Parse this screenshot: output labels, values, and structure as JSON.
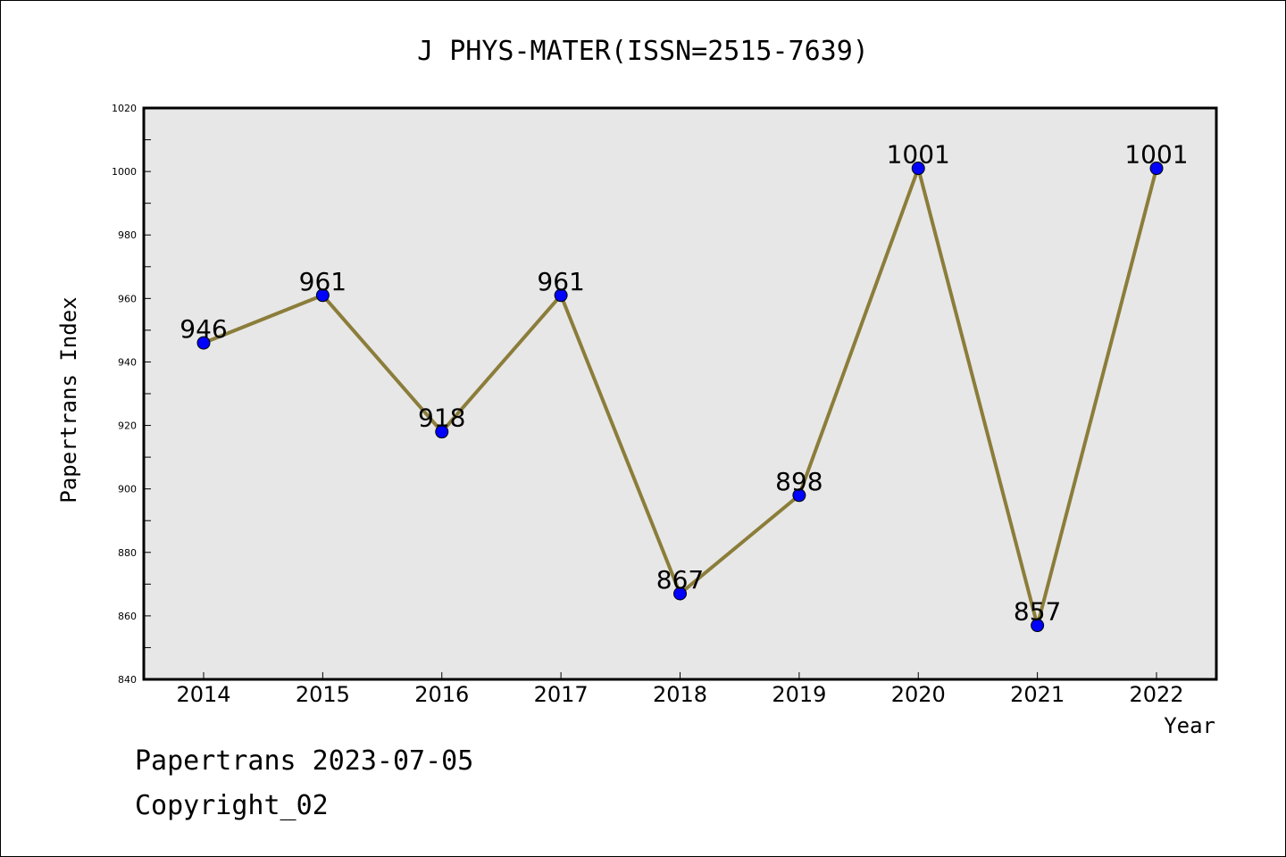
{
  "chart_data": {
    "type": "line",
    "title": "J PHYS-MATER(ISSN=2515-7639)",
    "xlabel": "Year",
    "ylabel": "Papertrans Index",
    "categories": [
      "2014",
      "2015",
      "2016",
      "2017",
      "2018",
      "2019",
      "2020",
      "2021",
      "2022"
    ],
    "series": [
      {
        "values": [
          946,
          961,
          918,
          961,
          867,
          898,
          1001,
          857,
          1001
        ]
      }
    ],
    "data_labels": [
      "946",
      "961",
      "918",
      "961",
      "867",
      "898",
      "1001",
      "857",
      "1001"
    ],
    "ylim": [
      840,
      1020
    ],
    "yticks": [
      840,
      860,
      880,
      900,
      920,
      940,
      960,
      980,
      1000,
      1020
    ],
    "grid": false,
    "line_color": "#8b7d3a",
    "marker_color": "#0000ff",
    "plot_background": "#e7e7e7"
  },
  "footer": {
    "line1": "Papertrans 2023-07-05",
    "line2": "Copyright_02"
  }
}
